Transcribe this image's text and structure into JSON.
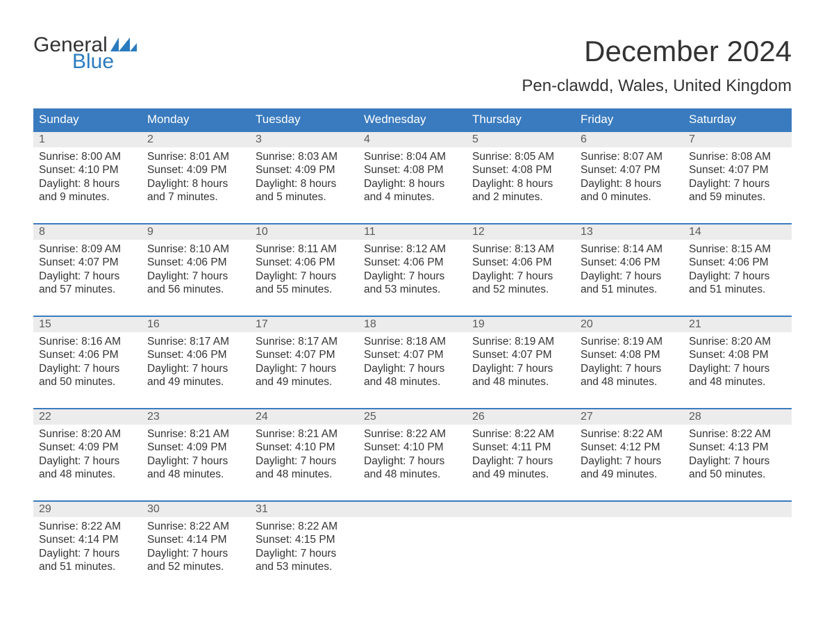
{
  "logo": {
    "text_general": "General",
    "text_blue": "Blue",
    "flag_color": "#2b7bbf"
  },
  "header": {
    "title": "December 2024",
    "subtitle": "Pen-clawdd, Wales, United Kingdom"
  },
  "colors": {
    "header_bg": "#3a7bbf",
    "header_text": "#ffffff",
    "daynum_bg": "#ececec",
    "daynum_border": "#3a7bbf",
    "body_text": "#333333",
    "daynum_text": "#5a5a5a",
    "page_bg": "#ffffff"
  },
  "typography": {
    "title_fontsize": 42,
    "subtitle_fontsize": 24,
    "header_fontsize": 17,
    "cell_fontsize": 15.5,
    "logo_fontsize": 30
  },
  "day_headers": [
    "Sunday",
    "Monday",
    "Tuesday",
    "Wednesday",
    "Thursday",
    "Friday",
    "Saturday"
  ],
  "weeks": [
    {
      "days": [
        {
          "num": "1",
          "sunrise": "Sunrise: 8:00 AM",
          "sunset": "Sunset: 4:10 PM",
          "dl1": "Daylight: 8 hours",
          "dl2": "and 9 minutes."
        },
        {
          "num": "2",
          "sunrise": "Sunrise: 8:01 AM",
          "sunset": "Sunset: 4:09 PM",
          "dl1": "Daylight: 8 hours",
          "dl2": "and 7 minutes."
        },
        {
          "num": "3",
          "sunrise": "Sunrise: 8:03 AM",
          "sunset": "Sunset: 4:09 PM",
          "dl1": "Daylight: 8 hours",
          "dl2": "and 5 minutes."
        },
        {
          "num": "4",
          "sunrise": "Sunrise: 8:04 AM",
          "sunset": "Sunset: 4:08 PM",
          "dl1": "Daylight: 8 hours",
          "dl2": "and 4 minutes."
        },
        {
          "num": "5",
          "sunrise": "Sunrise: 8:05 AM",
          "sunset": "Sunset: 4:08 PM",
          "dl1": "Daylight: 8 hours",
          "dl2": "and 2 minutes."
        },
        {
          "num": "6",
          "sunrise": "Sunrise: 8:07 AM",
          "sunset": "Sunset: 4:07 PM",
          "dl1": "Daylight: 8 hours",
          "dl2": "and 0 minutes."
        },
        {
          "num": "7",
          "sunrise": "Sunrise: 8:08 AM",
          "sunset": "Sunset: 4:07 PM",
          "dl1": "Daylight: 7 hours",
          "dl2": "and 59 minutes."
        }
      ]
    },
    {
      "days": [
        {
          "num": "8",
          "sunrise": "Sunrise: 8:09 AM",
          "sunset": "Sunset: 4:07 PM",
          "dl1": "Daylight: 7 hours",
          "dl2": "and 57 minutes."
        },
        {
          "num": "9",
          "sunrise": "Sunrise: 8:10 AM",
          "sunset": "Sunset: 4:06 PM",
          "dl1": "Daylight: 7 hours",
          "dl2": "and 56 minutes."
        },
        {
          "num": "10",
          "sunrise": "Sunrise: 8:11 AM",
          "sunset": "Sunset: 4:06 PM",
          "dl1": "Daylight: 7 hours",
          "dl2": "and 55 minutes."
        },
        {
          "num": "11",
          "sunrise": "Sunrise: 8:12 AM",
          "sunset": "Sunset: 4:06 PM",
          "dl1": "Daylight: 7 hours",
          "dl2": "and 53 minutes."
        },
        {
          "num": "12",
          "sunrise": "Sunrise: 8:13 AM",
          "sunset": "Sunset: 4:06 PM",
          "dl1": "Daylight: 7 hours",
          "dl2": "and 52 minutes."
        },
        {
          "num": "13",
          "sunrise": "Sunrise: 8:14 AM",
          "sunset": "Sunset: 4:06 PM",
          "dl1": "Daylight: 7 hours",
          "dl2": "and 51 minutes."
        },
        {
          "num": "14",
          "sunrise": "Sunrise: 8:15 AM",
          "sunset": "Sunset: 4:06 PM",
          "dl1": "Daylight: 7 hours",
          "dl2": "and 51 minutes."
        }
      ]
    },
    {
      "days": [
        {
          "num": "15",
          "sunrise": "Sunrise: 8:16 AM",
          "sunset": "Sunset: 4:06 PM",
          "dl1": "Daylight: 7 hours",
          "dl2": "and 50 minutes."
        },
        {
          "num": "16",
          "sunrise": "Sunrise: 8:17 AM",
          "sunset": "Sunset: 4:06 PM",
          "dl1": "Daylight: 7 hours",
          "dl2": "and 49 minutes."
        },
        {
          "num": "17",
          "sunrise": "Sunrise: 8:17 AM",
          "sunset": "Sunset: 4:07 PM",
          "dl1": "Daylight: 7 hours",
          "dl2": "and 49 minutes."
        },
        {
          "num": "18",
          "sunrise": "Sunrise: 8:18 AM",
          "sunset": "Sunset: 4:07 PM",
          "dl1": "Daylight: 7 hours",
          "dl2": "and 48 minutes."
        },
        {
          "num": "19",
          "sunrise": "Sunrise: 8:19 AM",
          "sunset": "Sunset: 4:07 PM",
          "dl1": "Daylight: 7 hours",
          "dl2": "and 48 minutes."
        },
        {
          "num": "20",
          "sunrise": "Sunrise: 8:19 AM",
          "sunset": "Sunset: 4:08 PM",
          "dl1": "Daylight: 7 hours",
          "dl2": "and 48 minutes."
        },
        {
          "num": "21",
          "sunrise": "Sunrise: 8:20 AM",
          "sunset": "Sunset: 4:08 PM",
          "dl1": "Daylight: 7 hours",
          "dl2": "and 48 minutes."
        }
      ]
    },
    {
      "days": [
        {
          "num": "22",
          "sunrise": "Sunrise: 8:20 AM",
          "sunset": "Sunset: 4:09 PM",
          "dl1": "Daylight: 7 hours",
          "dl2": "and 48 minutes."
        },
        {
          "num": "23",
          "sunrise": "Sunrise: 8:21 AM",
          "sunset": "Sunset: 4:09 PM",
          "dl1": "Daylight: 7 hours",
          "dl2": "and 48 minutes."
        },
        {
          "num": "24",
          "sunrise": "Sunrise: 8:21 AM",
          "sunset": "Sunset: 4:10 PM",
          "dl1": "Daylight: 7 hours",
          "dl2": "and 48 minutes."
        },
        {
          "num": "25",
          "sunrise": "Sunrise: 8:22 AM",
          "sunset": "Sunset: 4:10 PM",
          "dl1": "Daylight: 7 hours",
          "dl2": "and 48 minutes."
        },
        {
          "num": "26",
          "sunrise": "Sunrise: 8:22 AM",
          "sunset": "Sunset: 4:11 PM",
          "dl1": "Daylight: 7 hours",
          "dl2": "and 49 minutes."
        },
        {
          "num": "27",
          "sunrise": "Sunrise: 8:22 AM",
          "sunset": "Sunset: 4:12 PM",
          "dl1": "Daylight: 7 hours",
          "dl2": "and 49 minutes."
        },
        {
          "num": "28",
          "sunrise": "Sunrise: 8:22 AM",
          "sunset": "Sunset: 4:13 PM",
          "dl1": "Daylight: 7 hours",
          "dl2": "and 50 minutes."
        }
      ]
    },
    {
      "days": [
        {
          "num": "29",
          "sunrise": "Sunrise: 8:22 AM",
          "sunset": "Sunset: 4:14 PM",
          "dl1": "Daylight: 7 hours",
          "dl2": "and 51 minutes."
        },
        {
          "num": "30",
          "sunrise": "Sunrise: 8:22 AM",
          "sunset": "Sunset: 4:14 PM",
          "dl1": "Daylight: 7 hours",
          "dl2": "and 52 minutes."
        },
        {
          "num": "31",
          "sunrise": "Sunrise: 8:22 AM",
          "sunset": "Sunset: 4:15 PM",
          "dl1": "Daylight: 7 hours",
          "dl2": "and 53 minutes."
        },
        {
          "empty": true
        },
        {
          "empty": true
        },
        {
          "empty": true
        },
        {
          "empty": true
        }
      ]
    }
  ]
}
